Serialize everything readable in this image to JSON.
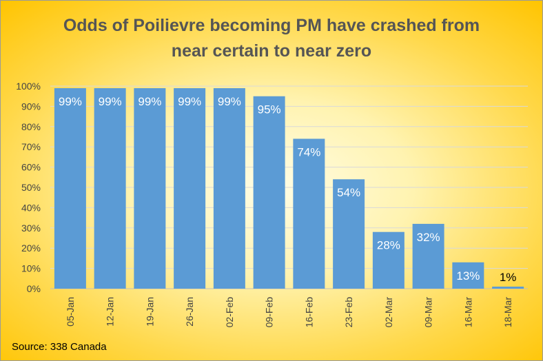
{
  "chart_data": {
    "type": "bar",
    "title_lines": [
      "Odds of Poilievre becoming PM have crashed from",
      "near certain to near zero"
    ],
    "categories": [
      "05-Jan",
      "12-Jan",
      "19-Jan",
      "26-Jan",
      "02-Feb",
      "09-Feb",
      "16-Feb",
      "23-Feb",
      "02-Mar",
      "09-Mar",
      "16-Mar",
      "18-Mar"
    ],
    "values": [
      99,
      99,
      99,
      99,
      99,
      95,
      74,
      54,
      28,
      32,
      13,
      1
    ],
    "data_labels": [
      "99%",
      "99%",
      "99%",
      "99%",
      "99%",
      "95%",
      "74%",
      "54%",
      "28%",
      "32%",
      "13%",
      "1%"
    ],
    "yticks": [
      "0%",
      "10%",
      "20%",
      "30%",
      "40%",
      "50%",
      "60%",
      "70%",
      "80%",
      "90%",
      "100%"
    ],
    "ylim": [
      0,
      100
    ],
    "grid": true,
    "legend": "none",
    "colors": {
      "bar": "#5b9bd5",
      "grid": "#d9d9d9",
      "axis": "#bfbfbf",
      "label_inside": "#ffffff",
      "label_outside": "#000000"
    }
  },
  "source": "Source: 338 Canada"
}
